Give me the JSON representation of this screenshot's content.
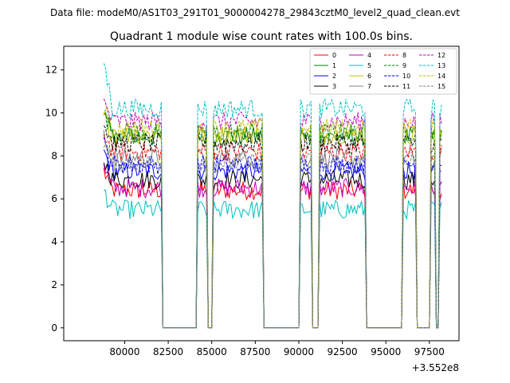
{
  "suptitle": "Data file: modeM0/AS1T03_291T01_9000004278_29843cztM0_level2_quad_clean.evt",
  "chart_data": {
    "type": "line",
    "title": "Quadrant 1 module wise count rates with 100.0s bins.",
    "xlabel": "",
    "ylabel": "",
    "x_offset_label": "+3.552e8",
    "xlim": [
      76500,
      99200
    ],
    "ylim": [
      -0.6,
      13.1
    ],
    "xticks": [
      80000,
      82500,
      85000,
      87500,
      90000,
      92500,
      95000,
      97500
    ],
    "xtick_labels": [
      "80000",
      "82500",
      "85000",
      "87500",
      "90000",
      "92500",
      "95000",
      "97500"
    ],
    "yticks": [
      0,
      2,
      4,
      6,
      8,
      10,
      12
    ],
    "ytick_labels": [
      "0",
      "2",
      "4",
      "6",
      "8",
      "10",
      "12"
    ],
    "bin_width_s": 100,
    "x_start": 78800,
    "x_end": 98200,
    "grid": false,
    "legend_location": "top-right",
    "legend_columns": 4,
    "gap_intervals": [
      [
        82200,
        84100
      ],
      [
        84800,
        85050
      ],
      [
        88000,
        90000
      ],
      [
        90750,
        91100
      ],
      [
        93900,
        95900
      ],
      [
        96800,
        97500
      ],
      [
        97900,
        98000
      ]
    ],
    "series": [
      {
        "name": "0",
        "color": "#ff0000",
        "dash": "solid",
        "level": 6.4
      },
      {
        "name": "1",
        "color": "#008000",
        "dash": "solid",
        "level": 8.9
      },
      {
        "name": "2",
        "color": "#0000ff",
        "dash": "solid",
        "level": 7.3
      },
      {
        "name": "3",
        "color": "#000000",
        "dash": "solid",
        "level": 6.9
      },
      {
        "name": "4",
        "color": "#bf00bf",
        "dash": "solid",
        "level": 6.5
      },
      {
        "name": "5",
        "color": "#00bfbf",
        "dash": "solid",
        "level": 5.5
      },
      {
        "name": "6",
        "color": "#bfbf00",
        "dash": "solid",
        "level": 9.0
      },
      {
        "name": "7",
        "color": "#808080",
        "dash": "solid",
        "level": 7.9
      },
      {
        "name": "8",
        "color": "#ff0000",
        "dash": "dashed",
        "level": 8.2
      },
      {
        "name": "9",
        "color": "#008000",
        "dash": "dashed",
        "level": 9.1
      },
      {
        "name": "10",
        "color": "#0000ff",
        "dash": "dashed",
        "level": 7.6
      },
      {
        "name": "11",
        "color": "#000000",
        "dash": "dashed",
        "level": 8.6
      },
      {
        "name": "12",
        "color": "#bf00bf",
        "dash": "dashed",
        "level": 9.6
      },
      {
        "name": "13",
        "color": "#00bfbf",
        "dash": "dashed",
        "level": 10.2
      },
      {
        "name": "14",
        "color": "#bfbf00",
        "dash": "dashed",
        "level": 9.3
      },
      {
        "name": "15",
        "color": "#808080",
        "dash": "dashed",
        "level": 7.7
      }
    ]
  }
}
